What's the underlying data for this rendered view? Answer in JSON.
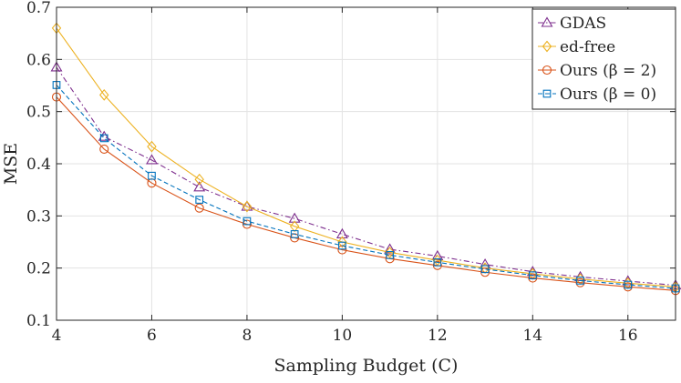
{
  "chart_data": {
    "type": "line",
    "xlabel": "Sampling Budget (C)",
    "ylabel": "MSE",
    "xlim": [
      4,
      17
    ],
    "ylim": [
      0.1,
      0.7
    ],
    "xticks": [
      "4",
      "6",
      "8",
      "10",
      "12",
      "14",
      "16"
    ],
    "yticks": [
      "0.1",
      "0.2",
      "0.3",
      "0.4",
      "0.5",
      "0.6",
      "0.7"
    ],
    "grid": true,
    "legend_position": "top-right",
    "x": [
      4,
      5,
      6,
      7,
      8,
      9,
      10,
      11,
      12,
      13,
      14,
      15,
      16,
      17
    ],
    "series": [
      {
        "name": "GDAS",
        "color": "#7e2f8e",
        "marker": "triangle",
        "line": "dashdot",
        "values": [
          0.585,
          0.452,
          0.407,
          0.355,
          0.318,
          0.295,
          0.265,
          0.236,
          0.223,
          0.207,
          0.193,
          0.183,
          0.175,
          0.167
        ]
      },
      {
        "name": "ed-free",
        "color": "#edb120",
        "marker": "diamond",
        "line": "solid",
        "values": [
          0.66,
          0.532,
          0.433,
          0.37,
          0.318,
          0.28,
          0.25,
          0.23,
          0.215,
          0.2,
          0.189,
          0.179,
          0.171,
          0.164
        ]
      },
      {
        "name": "Ours (β = 2)",
        "color": "#d95319",
        "marker": "circle",
        "line": "solid",
        "values": [
          0.528,
          0.428,
          0.363,
          0.315,
          0.284,
          0.258,
          0.235,
          0.218,
          0.205,
          0.192,
          0.181,
          0.172,
          0.164,
          0.157
        ]
      },
      {
        "name": "Ours (β = 0)",
        "color": "#0072bd",
        "marker": "square",
        "line": "dashed",
        "values": [
          0.551,
          0.449,
          0.377,
          0.331,
          0.29,
          0.265,
          0.243,
          0.225,
          0.211,
          0.198,
          0.186,
          0.176,
          0.168,
          0.161
        ]
      }
    ]
  }
}
